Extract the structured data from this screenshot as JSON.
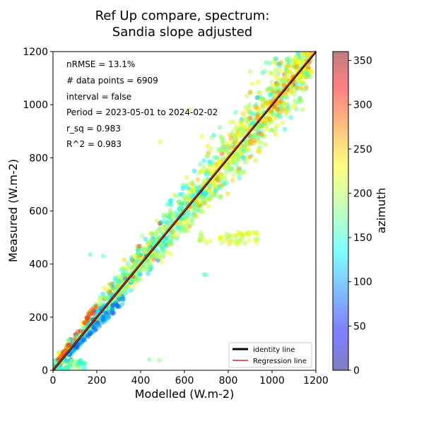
{
  "chart_data": {
    "type": "scatter",
    "title_line1": "Ref Up compare, spectrum:",
    "title_line2": "Sandia slope adjusted",
    "xlabel": "Modelled (W.m-2)",
    "ylabel": "Measured (W.m-2)",
    "xlim": [
      0,
      1200
    ],
    "ylim": [
      0,
      1200
    ],
    "x_ticks": [
      "0",
      "200",
      "400",
      "600",
      "800",
      "1000",
      "1200"
    ],
    "y_ticks": [
      "0",
      "200",
      "400",
      "600",
      "800",
      "1000",
      "1200"
    ],
    "grid": false,
    "annotations": [
      "nRMSE = 13.1%",
      "# data points = 6909",
      "interval = false",
      "Period = 2023-05-01 to 2024-02-02",
      "r_sq = 0.983",
      "R^2 = 0.983"
    ],
    "legend": {
      "position": "lower-right",
      "entries": [
        {
          "label": "identity line",
          "color": "#000000"
        },
        {
          "label": "Regression line",
          "color": "#d62728"
        }
      ]
    },
    "identity_line": {
      "x": [
        0,
        1200
      ],
      "y": [
        0,
        1200
      ]
    },
    "regression_line": {
      "x": [
        0,
        1200
      ],
      "y": [
        0,
        1203
      ]
    },
    "colorbar": {
      "label": "azimuth",
      "range": [
        0,
        360
      ],
      "ticks": [
        "0",
        "50",
        "100",
        "150",
        "200",
        "250",
        "300",
        "350"
      ],
      "colormap": "jet",
      "alpha": 0.5
    },
    "points_summary": {
      "description_color_var": "azimuth",
      "clusters": [
        {
          "x_range": [
            0,
            300
          ],
          "y_range": [
            0,
            320
          ],
          "azimuth_range": [
            60,
            300
          ]
        },
        {
          "x_range": [
            300,
            700
          ],
          "y_range": [
            300,
            740
          ],
          "azimuth_range": [
            120,
            260
          ]
        },
        {
          "x_range": [
            700,
            1200
          ],
          "y_range": [
            650,
            1160
          ],
          "azimuth_range": [
            150,
            270
          ]
        },
        {
          "x_range": [
            750,
            940
          ],
          "y_range": [
            460,
            520
          ],
          "azimuth_range": [
            200,
            220
          ]
        }
      ]
    }
  }
}
